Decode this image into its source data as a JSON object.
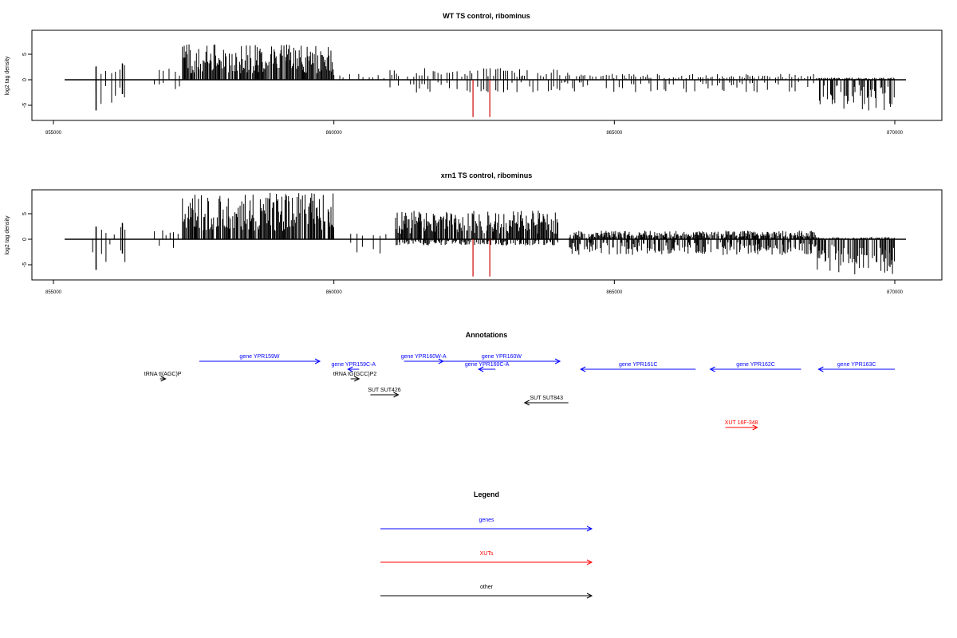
{
  "colors": {
    "gene": "#0000ff",
    "xut": "#ff0000",
    "other": "#000000",
    "highlight": "#cc0000"
  },
  "chart_data": [
    {
      "type": "bar",
      "title": "WT TS control, ribominus",
      "ylabel": "log2 tag density",
      "xlim": [
        855200,
        870200
      ],
      "ylim": [
        -7.5,
        9
      ],
      "x_ticks": [
        "855000",
        "860000",
        "865000",
        "870000"
      ],
      "x_tick_values": [
        855000,
        860000,
        865000,
        870000
      ],
      "y_ticks": [
        "-5",
        "0",
        "5"
      ],
      "y_tick_values": [
        -5,
        0,
        5
      ],
      "highlight_bars": [
        862480,
        862780
      ],
      "profile": [
        {
          "start": 855700,
          "end": 856300,
          "plus": 2.5,
          "minus": -4,
          "density": "sparse"
        },
        {
          "start": 856800,
          "end": 857300,
          "plus": 2,
          "minus": -1.5,
          "density": "sparse"
        },
        {
          "start": 857300,
          "end": 860000,
          "plus": 5,
          "minus": -0.5,
          "density": "dense"
        },
        {
          "start": 860000,
          "end": 860900,
          "plus": 1,
          "minus": -0.5,
          "density": "sparse"
        },
        {
          "start": 861000,
          "end": 864200,
          "plus": 2,
          "minus": -2,
          "density": "medium"
        },
        {
          "start": 864200,
          "end": 868600,
          "plus": 1,
          "minus": -2,
          "density": "medium"
        },
        {
          "start": 868600,
          "end": 870000,
          "plus": 0.3,
          "minus": -5,
          "density": "dense"
        }
      ]
    },
    {
      "type": "bar",
      "title": "xrn1 TS control, ribominus",
      "ylabel": "log2 tag density",
      "xlim": [
        855200,
        870200
      ],
      "ylim": [
        -7.5,
        9
      ],
      "x_ticks": [
        "855000",
        "860000",
        "865000",
        "870000"
      ],
      "x_tick_values": [
        855000,
        860000,
        865000,
        870000
      ],
      "y_ticks": [
        "-5",
        "0",
        "5"
      ],
      "y_tick_values": [
        -5,
        0,
        5
      ],
      "highlight_bars": [
        862480,
        862780
      ],
      "profile": [
        {
          "start": 855700,
          "end": 856300,
          "plus": 3,
          "minus": -4,
          "density": "sparse"
        },
        {
          "start": 856800,
          "end": 857300,
          "plus": 2,
          "minus": -1.5,
          "density": "sparse"
        },
        {
          "start": 857300,
          "end": 860000,
          "plus": 6.5,
          "minus": -0.5,
          "density": "dense"
        },
        {
          "start": 860300,
          "end": 861000,
          "plus": 1,
          "minus": -2.5,
          "density": "sparse"
        },
        {
          "start": 861100,
          "end": 864000,
          "plus": 4,
          "minus": -1,
          "density": "dense"
        },
        {
          "start": 864200,
          "end": 868600,
          "plus": 1.2,
          "minus": -2.5,
          "density": "dense"
        },
        {
          "start": 868600,
          "end": 870000,
          "plus": 0.3,
          "minus": -5.5,
          "density": "dense"
        }
      ]
    }
  ],
  "annotations": {
    "title": "Annotations",
    "features": [
      {
        "label": "gene YPR159W",
        "type": "gene",
        "strand": "+",
        "start": 857600,
        "end": 859750,
        "row": 0
      },
      {
        "label": "gene YPR159C-A",
        "type": "gene",
        "strand": "-",
        "start": 860250,
        "end": 860450,
        "row": 1
      },
      {
        "label": "gene YPR160W-A",
        "type": "gene",
        "strand": "+",
        "start": 861250,
        "end": 861950,
        "row": 0
      },
      {
        "label": "gene YPR160W",
        "type": "gene",
        "strand": "+",
        "start": 861950,
        "end": 864030,
        "row": 0
      },
      {
        "label": "gene YPR160C-A",
        "type": "gene",
        "strand": "-",
        "start": 862580,
        "end": 862880,
        "row": 1
      },
      {
        "label": "gene YPR161C",
        "type": "gene",
        "strand": "-",
        "start": 864400,
        "end": 866450,
        "row": 1
      },
      {
        "label": "gene YPR162C",
        "type": "gene",
        "strand": "-",
        "start": 866710,
        "end": 868330,
        "row": 1
      },
      {
        "label": "gene YPR163C",
        "type": "gene",
        "strand": "-",
        "start": 868640,
        "end": 870000,
        "row": 1
      },
      {
        "label": "tRNA tI(AGC)P",
        "type": "other",
        "strand": "+",
        "start": 856900,
        "end": 857000,
        "row": 2
      },
      {
        "label": "tRNA tG(GCC)P2",
        "type": "other",
        "strand": "+",
        "start": 860300,
        "end": 860450,
        "row": 2
      },
      {
        "label": "SUT SUT426",
        "type": "other",
        "strand": "+",
        "start": 860650,
        "end": 861150,
        "row": 3
      },
      {
        "label": "SUT SUT843",
        "type": "other",
        "strand": "-",
        "start": 863400,
        "end": 864180,
        "row": 4
      },
      {
        "label": "XUT 16F-348",
        "type": "xut",
        "strand": "+",
        "start": 866980,
        "end": 867550,
        "row": 5
      }
    ]
  },
  "legend": {
    "title": "Legend",
    "items": [
      {
        "label": "genes",
        "type": "gene"
      },
      {
        "label": "XUTs",
        "type": "xut"
      },
      {
        "label": "other",
        "type": "other"
      }
    ]
  }
}
